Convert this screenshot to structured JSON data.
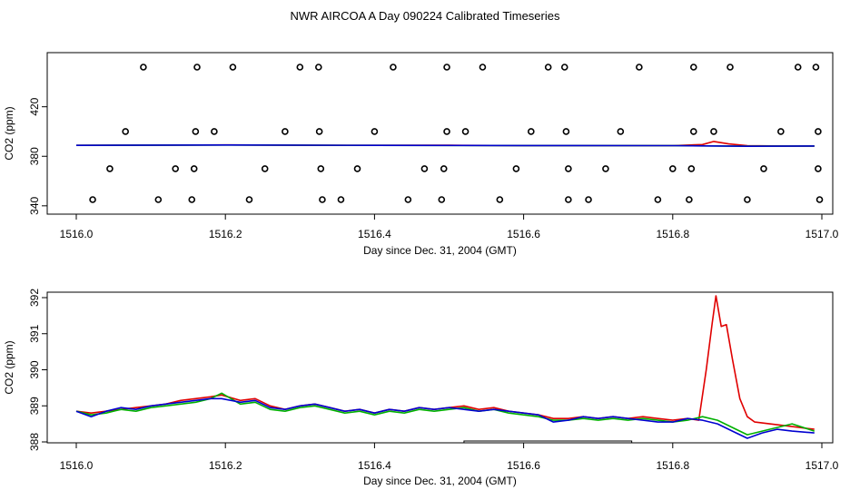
{
  "page": {
    "title": "NWR AIRCOA A  Day 090224  Calibrated Timeseries"
  },
  "colors": {
    "red": "#e00000",
    "green": "#00b000",
    "blue": "#0000d0",
    "frame": "#000000"
  },
  "chart_data": [
    {
      "type": "scatter",
      "title": "",
      "xlabel": "Day since Dec. 31, 2004 (GMT)",
      "ylabel": "CO2 (ppm)",
      "xlim": [
        1516.0,
        1517.0
      ],
      "ylim": [
        330,
        455
      ],
      "x_ticks": [
        1516.0,
        1516.2,
        1516.4,
        1516.6,
        1516.8,
        1517.0
      ],
      "x_tick_labels": [
        "1516.0",
        "1516.2",
        "1516.4",
        "1516.6",
        "1516.8",
        "1517.0"
      ],
      "y_ticks": [
        340,
        380,
        420
      ],
      "y_tick_labels": [
        "340",
        "380",
        "420"
      ],
      "point_series": {
        "marker": "open-circle",
        "x": [
          1516.09,
          1516.162,
          1516.21,
          1516.3,
          1516.325,
          1516.425,
          1516.497,
          1516.545,
          1516.633,
          1516.655,
          1516.755,
          1516.828,
          1516.877,
          1516.968,
          1516.992,
          1516.066,
          1516.16,
          1516.185,
          1516.28,
          1516.326,
          1516.4,
          1516.497,
          1516.522,
          1516.61,
          1516.657,
          1516.73,
          1516.828,
          1516.855,
          1516.945,
          1516.995,
          1516.045,
          1516.133,
          1516.158,
          1516.253,
          1516.328,
          1516.377,
          1516.467,
          1516.493,
          1516.59,
          1516.66,
          1516.71,
          1516.8,
          1516.825,
          1516.922,
          1516.995,
          1516.022,
          1516.11,
          1516.155,
          1516.232,
          1516.33,
          1516.355,
          1516.445,
          1516.49,
          1516.568,
          1516.66,
          1516.687,
          1516.78,
          1516.822,
          1516.9,
          1516.997
        ],
        "y": [
          452,
          452,
          452,
          452,
          452,
          452,
          452,
          452,
          452,
          452,
          452,
          452,
          452,
          452,
          452,
          400,
          400,
          400,
          400,
          400,
          400,
          400,
          400,
          400,
          400,
          400,
          400,
          400,
          400,
          400,
          370,
          370,
          370,
          370,
          370,
          370,
          370,
          370,
          370,
          370,
          370,
          370,
          370,
          370,
          370,
          345,
          345,
          345,
          345,
          345,
          345,
          345,
          345,
          345,
          345,
          345,
          345,
          345,
          345,
          345
        ]
      },
      "series": [
        {
          "color": "red",
          "x": [
            1516.0,
            1516.1,
            1516.2,
            1516.3,
            1516.4,
            1516.5,
            1516.6,
            1516.7,
            1516.8,
            1516.84,
            1516.855,
            1516.875,
            1516.9,
            1516.95,
            1516.99
          ],
          "values": [
            388.8,
            389.0,
            389.2,
            388.9,
            388.8,
            388.9,
            388.7,
            388.6,
            388.6,
            389.5,
            392.0,
            390.0,
            388.5,
            388.3,
            388.3
          ]
        },
        {
          "color": "green",
          "x": [
            1516.0,
            1516.2,
            1516.4,
            1516.6,
            1516.8,
            1516.9,
            1516.99
          ],
          "values": [
            388.8,
            389.1,
            388.8,
            388.7,
            388.6,
            388.2,
            388.3
          ]
        },
        {
          "color": "blue",
          "x": [
            1516.0,
            1516.2,
            1516.4,
            1516.6,
            1516.8,
            1516.9,
            1516.99
          ],
          "values": [
            388.8,
            389.1,
            388.8,
            388.7,
            388.6,
            388.1,
            388.3
          ]
        }
      ]
    },
    {
      "type": "line",
      "title": "",
      "xlabel": "Day since Dec. 31, 2004 (GMT)",
      "ylabel": "CO2 (ppm)",
      "xlim": [
        1516.0,
        1517.0
      ],
      "ylim": [
        388,
        392
      ],
      "x_ticks": [
        1516.0,
        1516.2,
        1516.4,
        1516.6,
        1516.8,
        1517.0
      ],
      "x_tick_labels": [
        "1516.0",
        "1516.2",
        "1516.4",
        "1516.6",
        "1516.8",
        "1517.0"
      ],
      "y_ticks": [
        388,
        389,
        390,
        391,
        392
      ],
      "y_tick_labels": [
        "388",
        "389",
        "390",
        "391",
        "392"
      ],
      "bracket": {
        "x_start": 1516.52,
        "x_end": 1516.745,
        "y": 388.0
      },
      "series": [
        {
          "color": "red",
          "x": [
            1516.0,
            1516.02,
            1516.04,
            1516.06,
            1516.08,
            1516.1,
            1516.12,
            1516.14,
            1516.16,
            1516.18,
            1516.195,
            1516.22,
            1516.24,
            1516.26,
            1516.28,
            1516.3,
            1516.32,
            1516.34,
            1516.36,
            1516.38,
            1516.4,
            1516.42,
            1516.44,
            1516.46,
            1516.48,
            1516.5,
            1516.52,
            1516.54,
            1516.56,
            1516.58,
            1516.6,
            1516.62,
            1516.64,
            1516.66,
            1516.68,
            1516.7,
            1516.72,
            1516.74,
            1516.76,
            1516.78,
            1516.8,
            1516.82,
            1516.835,
            1516.845,
            1516.853,
            1516.858,
            1516.865,
            1516.872,
            1516.88,
            1516.89,
            1516.9,
            1516.91,
            1516.93,
            1516.95,
            1516.97,
            1516.99
          ],
          "values": [
            388.85,
            388.8,
            388.85,
            388.9,
            388.95,
            389.0,
            389.05,
            389.15,
            389.2,
            389.25,
            389.3,
            389.15,
            389.2,
            389.0,
            388.9,
            389.0,
            389.05,
            388.95,
            388.85,
            388.9,
            388.8,
            388.9,
            388.85,
            388.95,
            388.9,
            388.95,
            389.0,
            388.9,
            388.95,
            388.85,
            388.8,
            388.75,
            388.65,
            388.65,
            388.7,
            388.65,
            388.7,
            388.65,
            388.7,
            388.65,
            388.6,
            388.65,
            388.6,
            390.0,
            391.3,
            392.05,
            391.2,
            391.25,
            390.3,
            389.2,
            388.7,
            388.55,
            388.5,
            388.45,
            388.4,
            388.35
          ]
        },
        {
          "color": "green",
          "x": [
            1516.0,
            1516.02,
            1516.04,
            1516.06,
            1516.08,
            1516.1,
            1516.12,
            1516.14,
            1516.16,
            1516.18,
            1516.195,
            1516.22,
            1516.24,
            1516.26,
            1516.28,
            1516.3,
            1516.32,
            1516.34,
            1516.36,
            1516.38,
            1516.4,
            1516.42,
            1516.44,
            1516.46,
            1516.48,
            1516.5,
            1516.52,
            1516.54,
            1516.56,
            1516.58,
            1516.6,
            1516.62,
            1516.64,
            1516.66,
            1516.68,
            1516.7,
            1516.72,
            1516.74,
            1516.76,
            1516.78,
            1516.8,
            1516.82,
            1516.84,
            1516.86,
            1516.88,
            1516.9,
            1516.92,
            1516.94,
            1516.96,
            1516.99
          ],
          "values": [
            388.85,
            388.75,
            388.8,
            388.9,
            388.85,
            388.95,
            389.0,
            389.05,
            389.1,
            389.2,
            389.35,
            389.05,
            389.1,
            388.9,
            388.85,
            388.95,
            389.0,
            388.9,
            388.8,
            388.85,
            388.75,
            388.85,
            388.8,
            388.9,
            388.85,
            388.9,
            388.95,
            388.85,
            388.9,
            388.8,
            388.75,
            388.7,
            388.6,
            388.6,
            388.65,
            388.6,
            388.65,
            388.6,
            388.65,
            388.6,
            388.55,
            388.6,
            388.7,
            388.6,
            388.4,
            388.2,
            388.3,
            388.4,
            388.5,
            388.3
          ]
        },
        {
          "color": "blue",
          "x": [
            1516.0,
            1516.02,
            1516.04,
            1516.06,
            1516.08,
            1516.1,
            1516.12,
            1516.14,
            1516.16,
            1516.18,
            1516.195,
            1516.22,
            1516.24,
            1516.26,
            1516.28,
            1516.3,
            1516.32,
            1516.34,
            1516.36,
            1516.38,
            1516.4,
            1516.42,
            1516.44,
            1516.46,
            1516.48,
            1516.5,
            1516.52,
            1516.54,
            1516.56,
            1516.58,
            1516.6,
            1516.62,
            1516.64,
            1516.66,
            1516.68,
            1516.7,
            1516.72,
            1516.74,
            1516.76,
            1516.78,
            1516.8,
            1516.82,
            1516.84,
            1516.86,
            1516.88,
            1516.9,
            1516.92,
            1516.94,
            1516.96,
            1516.99
          ],
          "values": [
            388.85,
            388.7,
            388.85,
            388.95,
            388.9,
            389.0,
            389.05,
            389.1,
            389.15,
            389.2,
            389.2,
            389.1,
            389.15,
            388.95,
            388.9,
            389.0,
            389.05,
            388.95,
            388.85,
            388.9,
            388.8,
            388.9,
            388.85,
            388.95,
            388.9,
            388.95,
            388.9,
            388.85,
            388.9,
            388.85,
            388.8,
            388.75,
            388.55,
            388.6,
            388.7,
            388.65,
            388.7,
            388.65,
            388.6,
            388.55,
            388.55,
            388.65,
            388.6,
            388.5,
            388.3,
            388.1,
            388.25,
            388.35,
            388.3,
            388.25
          ]
        }
      ]
    }
  ]
}
